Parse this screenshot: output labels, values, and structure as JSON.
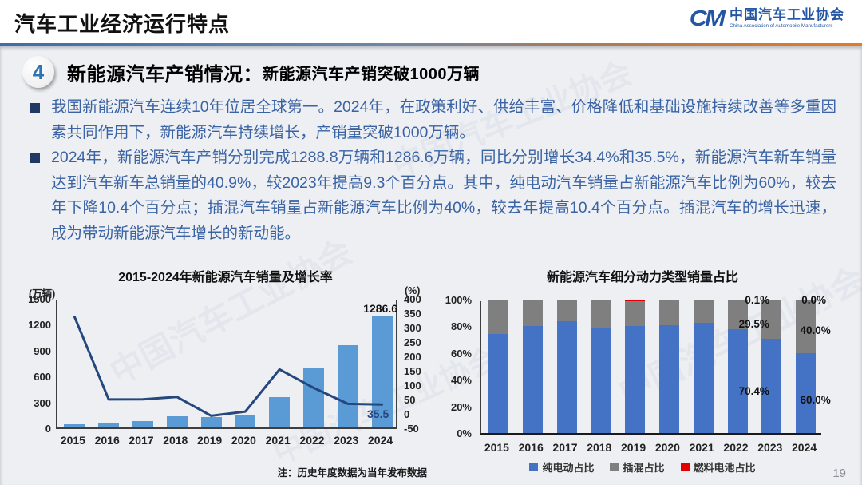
{
  "header": {
    "title": "汽车工业经济运行特点",
    "logo": {
      "monogram": "CM",
      "org_cn": "中国汽车工业协会",
      "org_en": "China Association of Automobile Manufacturers"
    }
  },
  "section": {
    "number": "4",
    "title": "新能源汽车产销情况：",
    "subtitle": "新能源汽车产销突破1000万辆"
  },
  "bullets": [
    "我国新能源汽车连续10年位居全球第一。2024年，在政策利好、供给丰富、价格降低和基础设施持续改善等多重因素共同作用下，新能源汽车持续增长，产销量突破1000万辆。",
    "2024年，新能源汽车产销分别完成1288.8万辆和1286.6万辆，同比分别增长34.4%和35.5%，新能源汽车新车销量达到汽车新车总销量的40.9%，较2023年提高9.3个百分点。其中，纯电动汽车销量占新能源汽车比例为60%，较去年下降10.4个百分点；插混汽车销量占新能源汽车比例为40%，较去年提高10.4个百分点。插混汽车的增长迅速，成为带动新能源汽车增长的新动能。"
  ],
  "watermark_text": "中国汽车工业协会",
  "page_number": "19",
  "colors": {
    "bar_blue_light": "#5b9bd5",
    "line_navy": "#24477e",
    "stacked_blue": "#4472c4",
    "stacked_gray": "#7f7f7f",
    "stacked_red": "#e00000",
    "accent_blue": "#2456a4",
    "divider_left": "#3c6eaa",
    "divider_right": "#e87a1e",
    "body_text": "#3a63a5"
  },
  "chart_data": [
    {
      "type": "bar+line",
      "title": "2015-2024年新能源汽车销量及增长率",
      "categories": [
        "2015",
        "2016",
        "2017",
        "2018",
        "2019",
        "2020",
        "2021",
        "2022",
        "2023",
        "2024"
      ],
      "left_axis": {
        "label": "(万辆)",
        "min": 0,
        "max": 1500,
        "ticks": [
          1500,
          1200,
          900,
          600,
          300,
          0
        ]
      },
      "right_axis": {
        "label": "(%)",
        "min": -50,
        "max": 400,
        "ticks": [
          400,
          350,
          300,
          250,
          200,
          150,
          100,
          50,
          0,
          -50
        ]
      },
      "series": [
        {
          "name": "新能源汽车销量(万辆)",
          "type": "bar",
          "axis": "left",
          "color": "#5b9bd5",
          "values": [
            33.1,
            50.7,
            77.7,
            125.6,
            120.6,
            136.7,
            352.1,
            688.7,
            949.5,
            1286.6
          ]
        },
        {
          "name": "增长率(%)",
          "type": "line",
          "axis": "right",
          "color": "#24477e",
          "values": [
            340,
            53,
            53.3,
            61.7,
            -4,
            10.9,
            157.5,
            93.4,
            37.9,
            35.5
          ]
        }
      ],
      "end_labels": {
        "bar": "1286.6",
        "line": "35.5"
      },
      "grid": false,
      "note": "注：历史年度数据为当年发布数据"
    },
    {
      "type": "stacked-bar-100",
      "title": "新能源汽车细分动力类型销量占比",
      "categories": [
        "2015",
        "2016",
        "2017",
        "2018",
        "2019",
        "2020",
        "2021",
        "2022",
        "2023",
        "2024"
      ],
      "y_axis": {
        "min": 0,
        "max": 100,
        "ticks": [
          "100%",
          "80%",
          "60%",
          "40%",
          "20%",
          "0%"
        ],
        "tick_values": [
          100,
          80,
          60,
          40,
          20,
          0
        ]
      },
      "series": [
        {
          "name": "纯电动占比",
          "color": "#4472c4",
          "values": [
            74,
            80.2,
            84,
            78.3,
            80.3,
            81,
            82.6,
            78,
            70.4,
            60
          ]
        },
        {
          "name": "插混占比",
          "color": "#7f7f7f",
          "values": [
            26,
            19.8,
            15.5,
            21,
            18.8,
            18.4,
            16.9,
            21.6,
            29.5,
            40
          ]
        },
        {
          "name": "燃料电池占比",
          "color": "#e00000",
          "values": [
            0,
            0,
            0.5,
            0.7,
            0.9,
            0.6,
            0.5,
            0.4,
            0.1,
            0
          ]
        }
      ],
      "annotations": [
        {
          "text": "0.1%",
          "x": 8,
          "y": 100,
          "dx": -16
        },
        {
          "text": "0.0%",
          "x": 9,
          "y": 100,
          "dx": 12
        },
        {
          "text": "29.5%",
          "x": 8,
          "y": 82,
          "dx": -20
        },
        {
          "text": "40.0%",
          "x": 9,
          "y": 77,
          "dx": 14
        },
        {
          "text": "70.4%",
          "x": 8,
          "y": 32,
          "dx": -20
        },
        {
          "text": "60.0%",
          "x": 9,
          "y": 25,
          "dx": 14
        }
      ],
      "legend_position": "bottom",
      "grid": false
    }
  ]
}
